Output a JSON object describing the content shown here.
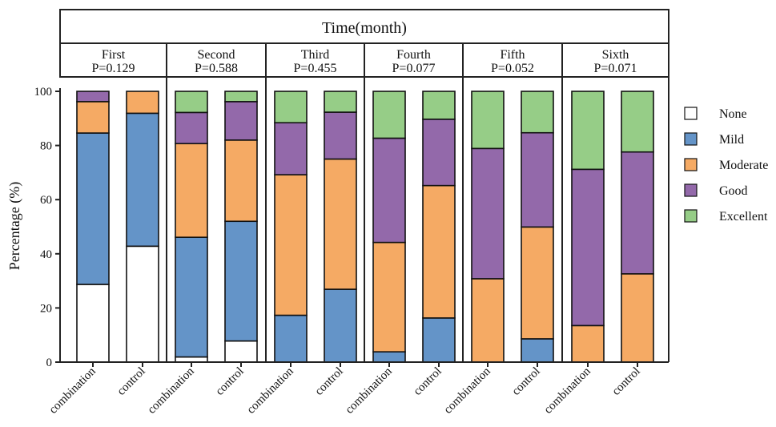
{
  "chart_data": {
    "type": "bar",
    "stacked": true,
    "header_title": "Time(month)",
    "ylabel": "Percentage (%)",
    "ylim": [
      0,
      100
    ],
    "yticks": [
      0,
      20,
      40,
      60,
      80,
      100
    ],
    "grid": false,
    "legend_position": "right",
    "categories": [
      "combination",
      "control"
    ],
    "series_names": [
      "None",
      "Mild",
      "Moderate",
      "Good",
      "Excellent"
    ],
    "colors": [
      "#ffffff",
      "#6494c8",
      "#f5aa64",
      "#9369aa",
      "#96cd87"
    ],
    "groups": [
      {
        "name": "First",
        "p_label": "P=0.129",
        "bars": [
          {
            "category": "combination",
            "values": [
              28.7,
              55.9,
              11.6,
              3.8,
              0
            ]
          },
          {
            "category": "control",
            "values": [
              42.8,
              49.1,
              8.1,
              0,
              0
            ]
          }
        ]
      },
      {
        "name": "Second",
        "p_label": "P=0.588",
        "bars": [
          {
            "category": "combination",
            "values": [
              1.9,
              44.2,
              34.6,
              11.5,
              7.8
            ]
          },
          {
            "category": "control",
            "values": [
              7.8,
              44.2,
              30.0,
              14.2,
              3.8
            ]
          }
        ]
      },
      {
        "name": "Third",
        "p_label": "P=0.455",
        "bars": [
          {
            "category": "combination",
            "values": [
              0,
              17.3,
              51.9,
              19.2,
              11.6
            ]
          },
          {
            "category": "control",
            "values": [
              0,
              26.9,
              48.1,
              17.3,
              7.7
            ]
          }
        ]
      },
      {
        "name": "Fourth",
        "p_label": "P=0.077",
        "bars": [
          {
            "category": "combination",
            "values": [
              0,
              3.8,
              40.4,
              38.5,
              17.3
            ]
          },
          {
            "category": "control",
            "values": [
              0,
              16.3,
              48.9,
              24.5,
              10.3
            ]
          }
        ]
      },
      {
        "name": "Fifth",
        "p_label": "P=0.052",
        "bars": [
          {
            "category": "combination",
            "values": [
              0,
              0,
              30.8,
              48.1,
              21.1
            ]
          },
          {
            "category": "control",
            "values": [
              0,
              8.6,
              41.3,
              34.8,
              15.3
            ]
          }
        ]
      },
      {
        "name": "Sixth",
        "p_label": "P=0.071",
        "bars": [
          {
            "category": "combination",
            "values": [
              0,
              0,
              13.5,
              57.7,
              28.8
            ]
          },
          {
            "category": "control",
            "values": [
              0,
              0,
              32.6,
              45.0,
              22.4
            ]
          }
        ]
      }
    ]
  }
}
